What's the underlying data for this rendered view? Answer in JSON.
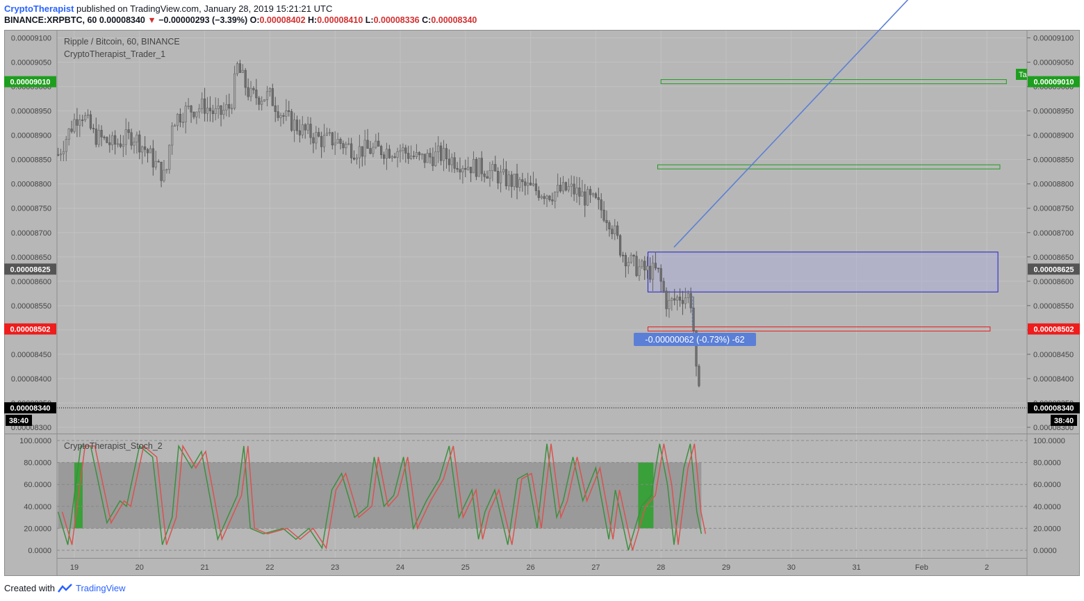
{
  "header": {
    "author": "CryptoTherapist",
    "published_text": " published on TradingView.com, January 28, 2019 15:21:21 UTC",
    "symbol_line": "BINANCE:XRPBTC, 60",
    "last_price": "0.00008340",
    "change": "−0.00000293 (−3.39%)",
    "open_label": "O:",
    "open": "0.00008402",
    "high_label": "H:",
    "high": "0.00008410",
    "low_label": "L:",
    "low": "0.00008336",
    "close_label": "C:",
    "close": "0.00008340"
  },
  "chart_title": "Ripple / Bitcoin, 60, BINANCE",
  "indicator_name": "CryptoTherapist_Trader_1",
  "stoch_name": "CryptoTherapist_Stoch_2",
  "countdown": "38:40",
  "measure_label": "-0.00000062 (-0.73%) -62",
  "target_tag": "Ta",
  "footer": {
    "created_with": "Created with",
    "brand": "TradingView"
  },
  "colors": {
    "up": "#3a8a3a",
    "down": "#555555",
    "green_level": "#1e9e1e",
    "red_level": "#ee1c1c",
    "box": "#2020cc",
    "trend": "#5b7fd6"
  },
  "chart_data": {
    "type": "candlestick",
    "x_ticks": [
      "19",
      "20",
      "21",
      "22",
      "23",
      "24",
      "25",
      "26",
      "27",
      "28",
      "29",
      "30",
      "31",
      "Feb",
      "2"
    ],
    "y_ticks": [
      "0.00009100",
      "0.00009050",
      "0.00009000",
      "0.00008950",
      "0.00008900",
      "0.00008850",
      "0.00008800",
      "0.00008750",
      "0.00008700",
      "0.00008650",
      "0.00008600",
      "0.00008550",
      "0.00008500",
      "0.00008450",
      "0.00008400",
      "0.00008350",
      "0.00008300"
    ],
    "ylim": [
      8.29e-05,
      9.115e-05
    ],
    "price_tags": [
      {
        "value": "0.00009010",
        "color": "#1e9e1e"
      },
      {
        "value": "0.00008625",
        "color": "#555555"
      },
      {
        "value": "0.00008502",
        "color": "#ee1c1c"
      },
      {
        "value": "0.00008340",
        "color": "#000000"
      }
    ],
    "levels": [
      {
        "price": 9.01e-05,
        "from_day": 28.0,
        "to_day": 33.3,
        "color": "#1e9e1e"
      },
      {
        "price": 8.835e-05,
        "from_day": 27.95,
        "to_day": 33.2,
        "color": "#1e9e1e"
      },
      {
        "price": 8.502e-05,
        "from_day": 27.8,
        "to_day": 33.05,
        "color": "#ee1c1c"
      }
    ],
    "box": {
      "top": 8.66e-05,
      "bottom": 8.578e-05,
      "from_day": 27.8,
      "to_day": 33.17
    },
    "trend_line": {
      "from": [
        28.2,
        8.67e-05
      ],
      "to": [
        31.8,
        9.18e-05
      ]
    },
    "series_path": [
      [
        18.75,
        8.86e-05
      ],
      [
        19.0,
        8.93e-05
      ],
      [
        19.1,
        8.95e-05
      ],
      [
        19.3,
        8.9e-05
      ],
      [
        19.6,
        8.88e-05
      ],
      [
        19.9,
        8.9e-05
      ],
      [
        20.1,
        8.87e-05
      ],
      [
        20.3,
        8.83e-05
      ],
      [
        20.4,
        8.81e-05
      ],
      [
        20.5,
        8.93e-05
      ],
      [
        20.7,
        8.95e-05
      ],
      [
        21.0,
        8.96e-05
      ],
      [
        21.2,
        8.94e-05
      ],
      [
        21.4,
        8.96e-05
      ],
      [
        21.5,
        9.04e-05
      ],
      [
        21.7,
        8.98e-05
      ],
      [
        22.0,
        8.98e-05
      ],
      [
        22.2,
        8.94e-05
      ],
      [
        22.5,
        8.91e-05
      ],
      [
        22.8,
        8.89e-05
      ],
      [
        23.0,
        8.89e-05
      ],
      [
        23.3,
        8.87e-05
      ],
      [
        23.6,
        8.87e-05
      ],
      [
        24.0,
        8.87e-05
      ],
      [
        24.3,
        8.85e-05
      ],
      [
        24.6,
        8.86e-05
      ],
      [
        25.0,
        8.84e-05
      ],
      [
        25.3,
        8.83e-05
      ],
      [
        25.6,
        8.81e-05
      ],
      [
        26.0,
        8.79e-05
      ],
      [
        26.3,
        8.78e-05
      ],
      [
        26.6,
        8.79e-05
      ],
      [
        27.0,
        8.76e-05
      ],
      [
        27.2,
        8.73e-05
      ],
      [
        27.4,
        8.66e-05
      ],
      [
        27.6,
        8.63e-05
      ],
      [
        27.8,
        8.62e-05
      ],
      [
        27.95,
        8.62e-05
      ],
      [
        28.1,
        8.55e-05
      ],
      [
        28.3,
        8.57e-05
      ],
      [
        28.45,
        8.57e-05
      ],
      [
        28.5,
        8.5e-05
      ],
      [
        28.55,
        8.39e-05
      ],
      [
        28.62,
        8.34e-05
      ]
    ],
    "stoch": {
      "ylim": [
        0,
        100
      ],
      "y_ticks": [
        "100.0000",
        "80.0000",
        "60.0000",
        "40.0000",
        "20.0000",
        "0.0000"
      ],
      "band": [
        20,
        80
      ],
      "k": [
        [
          18.75,
          35
        ],
        [
          18.9,
          5
        ],
        [
          19.1,
          95
        ],
        [
          19.25,
          95
        ],
        [
          19.5,
          25
        ],
        [
          19.7,
          45
        ],
        [
          19.8,
          40
        ],
        [
          20.0,
          95
        ],
        [
          20.2,
          85
        ],
        [
          20.35,
          5
        ],
        [
          20.5,
          30
        ],
        [
          20.6,
          95
        ],
        [
          20.8,
          75
        ],
        [
          20.95,
          90
        ],
        [
          21.2,
          10
        ],
        [
          21.5,
          50
        ],
        [
          21.6,
          95
        ],
        [
          21.7,
          20
        ],
        [
          21.9,
          15
        ],
        [
          22.2,
          20
        ],
        [
          22.4,
          10
        ],
        [
          22.6,
          20
        ],
        [
          22.8,
          2
        ],
        [
          22.95,
          55
        ],
        [
          23.1,
          70
        ],
        [
          23.3,
          30
        ],
        [
          23.5,
          40
        ],
        [
          23.6,
          85
        ],
        [
          23.75,
          40
        ],
        [
          23.9,
          50
        ],
        [
          24.05,
          85
        ],
        [
          24.2,
          20
        ],
        [
          24.4,
          45
        ],
        [
          24.6,
          65
        ],
        [
          24.75,
          95
        ],
        [
          24.9,
          30
        ],
        [
          25.1,
          55
        ],
        [
          25.2,
          10
        ],
        [
          25.3,
          35
        ],
        [
          25.45,
          55
        ],
        [
          25.65,
          5
        ],
        [
          25.8,
          65
        ],
        [
          25.95,
          70
        ],
        [
          26.1,
          20
        ],
        [
          26.25,
          97
        ],
        [
          26.4,
          30
        ],
        [
          26.5,
          45
        ],
        [
          26.65,
          85
        ],
        [
          26.8,
          45
        ],
        [
          27.0,
          75
        ],
        [
          27.2,
          10
        ],
        [
          27.3,
          55
        ],
        [
          27.5,
          0
        ],
        [
          27.7,
          40
        ],
        [
          27.85,
          50
        ],
        [
          27.98,
          97
        ],
        [
          28.1,
          60
        ],
        [
          28.2,
          5
        ],
        [
          28.35,
          75
        ],
        [
          28.45,
          97
        ],
        [
          28.55,
          35
        ],
        [
          28.62,
          15
        ]
      ]
    }
  }
}
